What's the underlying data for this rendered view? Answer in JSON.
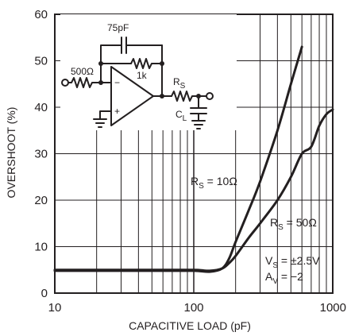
{
  "chart_data": {
    "type": "line",
    "title": "",
    "xlabel": "CAPACITIVE LOAD (pF)",
    "ylabel": "OVERSHOOT (%)",
    "xscale": "log",
    "xlim": [
      10,
      1000
    ],
    "ylim": [
      0,
      60
    ],
    "x_ticks": [
      "10",
      "100",
      "1000"
    ],
    "y_ticks": [
      "0",
      "10",
      "20",
      "30",
      "40",
      "50",
      "60"
    ],
    "grid": true,
    "series": [
      {
        "name": "R_S = 10Ω",
        "label_main": "R",
        "label_sub": "S",
        "label_rest": " = 10Ω",
        "x": [
          10,
          50,
          100,
          130,
          160,
          180,
          200,
          250,
          300,
          400,
          500,
          600
        ],
        "y": [
          4.8,
          4.8,
          4.8,
          4.6,
          5.3,
          7.5,
          11,
          18,
          24,
          35,
          45,
          53
        ]
      },
      {
        "name": "R_S = 50Ω",
        "label_main": "R",
        "label_sub": "S",
        "label_rest": " = 50Ω",
        "x": [
          10,
          50,
          100,
          130,
          160,
          180,
          200,
          250,
          300,
          400,
          500,
          600,
          700,
          800,
          900,
          1000
        ],
        "y": [
          5,
          5,
          5,
          4.8,
          5.3,
          6.5,
          8,
          12,
          15,
          20,
          25,
          30,
          31.5,
          36,
          38.5,
          39.5
        ]
      }
    ],
    "conditions": {
      "vs": {
        "main": "V",
        "sub": "S",
        "rest": " = ±2.5V"
      },
      "av": {
        "main": "A",
        "sub": "V",
        "rest": " = −2"
      }
    }
  },
  "schematic": {
    "c_feedback": "75pF",
    "r_feedback": "1k",
    "r_input": "500Ω",
    "minus": "−",
    "plus": "+",
    "rs": {
      "main": "R",
      "sub": "S"
    },
    "cl": {
      "main": "C",
      "sub": "L"
    }
  }
}
